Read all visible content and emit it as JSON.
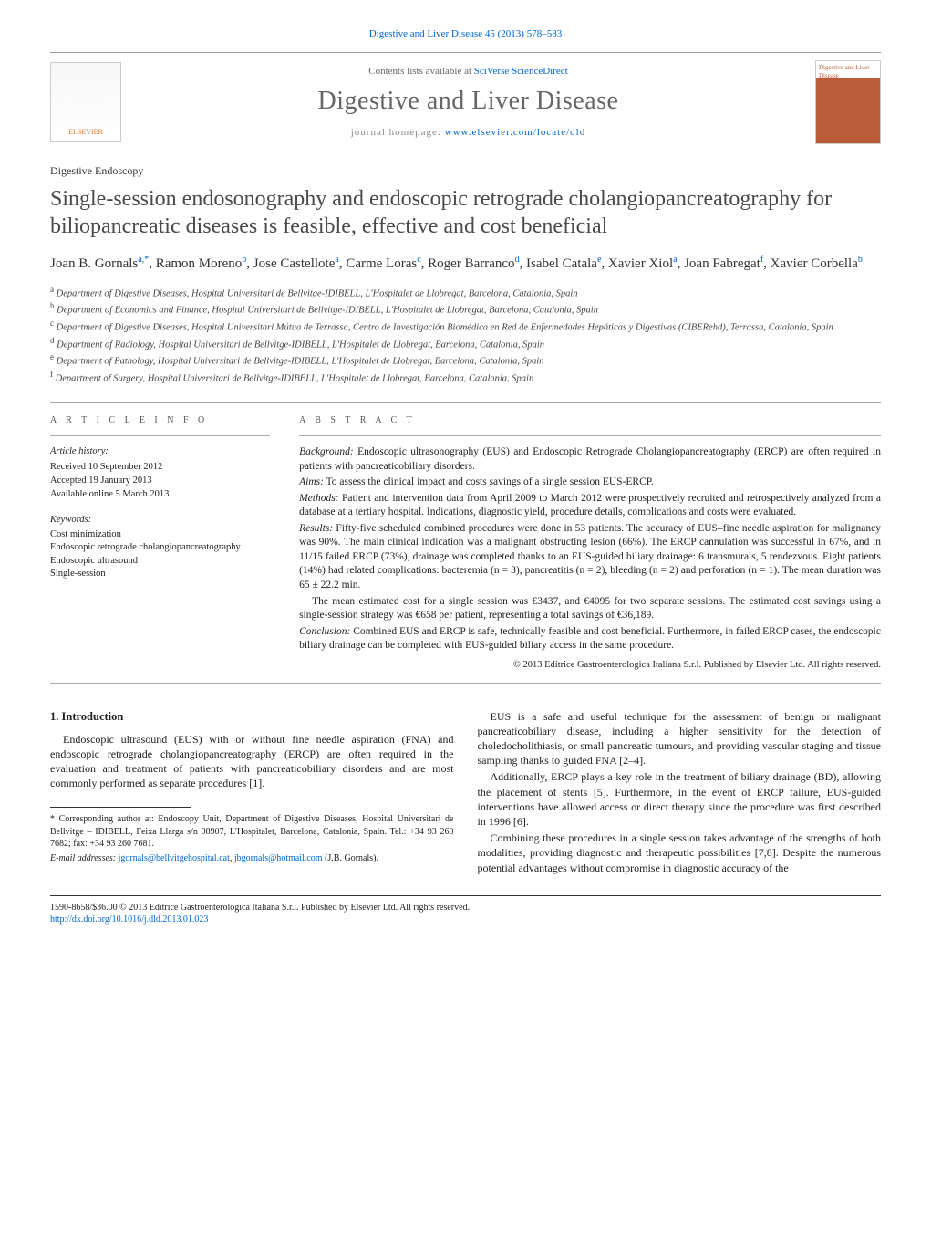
{
  "top_citation": "Digestive and Liver Disease 45 (2013) 578–583",
  "header": {
    "contents_prefix": "Contents lists available at ",
    "contents_link": "SciVerse ScienceDirect",
    "journal_title": "Digestive and Liver Disease",
    "homepage_prefix": "journal homepage: ",
    "homepage_link": "www.elsevier.com/locate/dld",
    "elsevier_label": "ELSEVIER",
    "cover_label": "Digestive and Liver Disease"
  },
  "category": "Digestive Endoscopy",
  "title": "Single-session endosonography and endoscopic retrograde cholangiopancreatography for biliopancreatic diseases is feasible, effective and cost beneficial",
  "authors_html_parts": [
    {
      "name": "Joan B. Gornals",
      "sup": "a,*"
    },
    {
      "name": "Ramon Moreno",
      "sup": "b"
    },
    {
      "name": "Jose Castellote",
      "sup": "a"
    },
    {
      "name": "Carme Loras",
      "sup": "c"
    },
    {
      "name": "Roger Barranco",
      "sup": "d"
    },
    {
      "name": "Isabel Catala",
      "sup": "e"
    },
    {
      "name": "Xavier Xiol",
      "sup": "a"
    },
    {
      "name": "Joan Fabregat",
      "sup": "f"
    },
    {
      "name": "Xavier Corbella",
      "sup": "b"
    }
  ],
  "affiliations": [
    {
      "sup": "a",
      "text": "Department of Digestive Diseases, Hospital Universitari de Bellvitge-IDIBELL, L'Hospitalet de Llobregat, Barcelona, Catalonia, Spain"
    },
    {
      "sup": "b",
      "text": "Department of Economics and Finance, Hospital Universitari de Bellvitge-IDIBELL, L'Hospitalet de Llobregat, Barcelona, Catalonia, Spain"
    },
    {
      "sup": "c",
      "text": "Department of Digestive Diseases, Hospital Universitari Mútua de Terrassa, Centro de Investigación Biomédica en Red de Enfermedades Hepáticas y Digestivas (CIBERehd), Terrassa, Catalonia, Spain"
    },
    {
      "sup": "d",
      "text": "Department of Radiology, Hospital Universitari de Bellvitge-IDIBELL, L'Hospitalet de Llobregat, Barcelona, Catalonia, Spain"
    },
    {
      "sup": "e",
      "text": "Department of Pathology, Hospital Universitari de Bellvitge-IDIBELL, L'Hospitalet de Llobregat, Barcelona, Catalonia, Spain"
    },
    {
      "sup": "f",
      "text": "Department of Surgery, Hospital Universitari de Bellvitge-IDIBELL, L'Hospitalet de Llobregat, Barcelona, Catalonia, Spain"
    }
  ],
  "info": {
    "heading_left": "a r t i c l e   i n f o",
    "heading_right": "a b s t r a c t",
    "history_label": "Article history:",
    "received": "Received 10 September 2012",
    "accepted": "Accepted 19 January 2013",
    "online": "Available online 5 March 2013",
    "keywords_label": "Keywords:",
    "keywords": [
      "Cost minimization",
      "Endoscopic retrograde cholangiopancreatography",
      "Endoscopic ultrasound",
      "Single-session"
    ]
  },
  "abstract": {
    "background_label": "Background:",
    "background": " Endoscopic ultrasonography (EUS) and Endoscopic Retrograde Cholangiopancreatography (ERCP) are often required in patients with pancreaticobiliary disorders.",
    "aims_label": "Aims:",
    "aims": " To assess the clinical impact and costs savings of a single session EUS-ERCP.",
    "methods_label": "Methods:",
    "methods": " Patient and intervention data from April 2009 to March 2012 were prospectively recruited and retrospectively analyzed from a database at a tertiary hospital. Indications, diagnostic yield, procedure details, complications and costs were evaluated.",
    "results_label": "Results:",
    "results": " Fifty-five scheduled combined procedures were done in 53 patients. The accuracy of EUS–fine needle aspiration for malignancy was 90%. The main clinical indication was a malignant obstructing lesion (66%). The ERCP cannulation was successful in 67%, and in 11/15 failed ERCP (73%), drainage was completed thanks to an EUS-guided biliary drainage: 6 transmurals, 5 rendezvous. Eight patients (14%) had related complications: bacteremia (n = 3), pancreatitis (n = 2), bleeding (n = 2) and perforation (n = 1). The mean duration was 65 ± 22.2 min.",
    "results2": "The mean estimated cost for a single session was €3437, and €4095 for two separate sessions. The estimated cost savings using a single-session strategy was €658 per patient, representing a total savings of €36,189.",
    "conclusion_label": "Conclusion:",
    "conclusion": " Combined EUS and ERCP is safe, technically feasible and cost beneficial. Furthermore, in failed ERCP cases, the endoscopic biliary drainage can be completed with EUS-guided biliary access in the same procedure.",
    "copyright": "© 2013 Editrice Gastroenterologica Italiana S.r.l. Published by Elsevier Ltd. All rights reserved."
  },
  "body": {
    "sec1_title": "1. Introduction",
    "p1": "Endoscopic ultrasound (EUS) with or without fine needle aspiration (FNA) and endoscopic retrograde cholangiopancreatography (ERCP) are often required in the evaluation and treatment of patients with pancreaticobiliary disorders and are most commonly performed as separate procedures [1].",
    "p2": "EUS is a safe and useful technique for the assessment of benign or malignant pancreaticobiliary disease, including a higher sensitivity for the detection of choledocholithiasis, or small pancreatic tumours, and providing vascular staging and tissue sampling thanks to guided FNA [2–4].",
    "p3": "Additionally, ERCP plays a key role in the treatment of biliary drainage (BD), allowing the placement of stents [5]. Furthermore, in the event of ERCP failure, EUS-guided interventions have allowed access or direct therapy since the procedure was first described in 1996 [6].",
    "p4": "Combining these procedures in a single session takes advantage of the strengths of both modalities, providing diagnostic and therapeutic possibilities [7,8]. Despite the numerous potential advantages without compromise in diagnostic accuracy of the"
  },
  "footnotes": {
    "corr": "* Corresponding author at: Endoscopy Unit, Department of Digestive Diseases, Hospital Universitari de Bellvitge – IDIBELL, Feixa Llarga s/n 08907, L'Hospitalet, Barcelona, Catalonia, Spain. Tel.: +34 93 260 7682; fax: +34 93 260 7681.",
    "email_label": "E-mail addresses: ",
    "email1": "jgornals@bellvitgehospital.cat",
    "email_sep": ", ",
    "email2": "jbgornals@hotmail.com",
    "email_owner": "(J.B. Gornals)."
  },
  "bottom": {
    "left": "1590-8658/$36.00 © 2013 Editrice Gastroenterologica Italiana S.r.l. Published by Elsevier Ltd. All rights reserved.",
    "doi": "http://dx.doi.org/10.1016/j.dld.2013.01.023"
  },
  "colors": {
    "link": "#0066cc",
    "elsevier_orange": "#ee7b2d",
    "title_gray": "#4a4a4a",
    "rule": "#999999"
  }
}
